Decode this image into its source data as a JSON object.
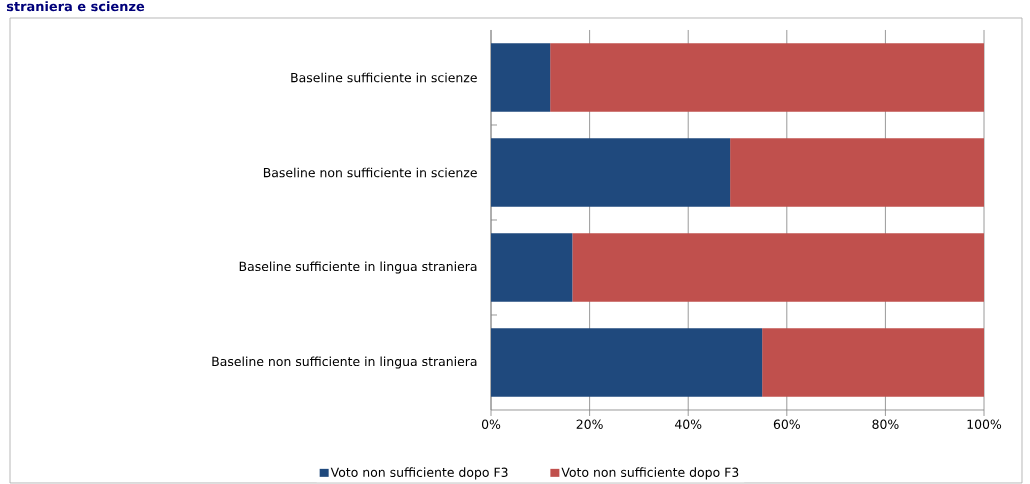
{
  "chart_data": {
    "type": "bar",
    "orientation": "horizontal",
    "stacked": true,
    "title": "straniera e scienze",
    "categories": [
      "Baseline sufficiente in scienze",
      "Baseline non sufficiente in scienze",
      "Baseline sufficiente in lingua straniera",
      "Baseline non sufficiente in lingua straniera"
    ],
    "series": [
      {
        "name": "Voto non sufficiente dopo F3",
        "color": "#1f497d",
        "values": [
          12,
          48.5,
          16.5,
          55
        ]
      },
      {
        "name": "Voto non sufficiente dopo F3",
        "color": "#c0504d",
        "values": [
          88,
          51.5,
          83.5,
          45
        ]
      }
    ],
    "xlim": [
      0,
      100
    ],
    "xticks": [
      {
        "value": 0,
        "label": "0%"
      },
      {
        "value": 20,
        "label": "20%"
      },
      {
        "value": 40,
        "label": "40%"
      },
      {
        "value": 60,
        "label": "60%"
      },
      {
        "value": 80,
        "label": "80%"
      },
      {
        "value": 100,
        "label": "100%"
      }
    ],
    "grid": "x",
    "legend": "bottom"
  }
}
